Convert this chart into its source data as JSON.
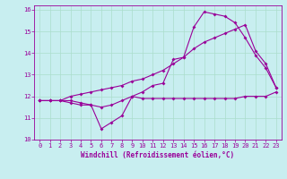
{
  "title": "",
  "xlabel": "Windchill (Refroidissement éolien,°C)",
  "bg_color": "#c8eef0",
  "line_color": "#990099",
  "grid_color": "#aaddcc",
  "xlim": [
    -0.5,
    23.5
  ],
  "ylim": [
    10,
    16.2
  ],
  "xticks": [
    0,
    1,
    2,
    3,
    4,
    5,
    6,
    7,
    8,
    9,
    10,
    11,
    12,
    13,
    14,
    15,
    16,
    17,
    18,
    19,
    20,
    21,
    22,
    23
  ],
  "yticks": [
    10,
    11,
    12,
    13,
    14,
    15,
    16
  ],
  "series1_x": [
    0,
    1,
    2,
    3,
    4,
    5,
    6,
    7,
    8,
    9,
    10,
    11,
    12,
    13,
    14,
    15,
    16,
    17,
    18,
    19,
    20,
    21,
    22,
    23
  ],
  "series1_y": [
    11.8,
    11.8,
    11.8,
    11.7,
    11.6,
    11.6,
    10.5,
    10.8,
    11.1,
    12.0,
    11.9,
    11.9,
    11.9,
    11.9,
    11.9,
    11.9,
    11.9,
    11.9,
    11.9,
    11.9,
    12.0,
    12.0,
    12.0,
    12.2
  ],
  "series2_x": [
    0,
    1,
    2,
    3,
    4,
    5,
    6,
    7,
    8,
    9,
    10,
    11,
    12,
    13,
    14,
    15,
    16,
    17,
    18,
    19,
    20,
    21,
    22,
    23
  ],
  "series2_y": [
    11.8,
    11.8,
    11.8,
    11.8,
    11.7,
    11.6,
    11.5,
    11.6,
    11.8,
    12.0,
    12.2,
    12.5,
    12.6,
    13.7,
    13.8,
    15.2,
    15.9,
    15.8,
    15.7,
    15.4,
    14.7,
    13.9,
    13.3,
    12.4
  ],
  "series3_x": [
    0,
    1,
    2,
    3,
    4,
    5,
    6,
    7,
    8,
    9,
    10,
    11,
    12,
    13,
    14,
    15,
    16,
    17,
    18,
    19,
    20,
    21,
    22,
    23
  ],
  "series3_y": [
    11.8,
    11.8,
    11.8,
    12.0,
    12.1,
    12.2,
    12.3,
    12.4,
    12.5,
    12.7,
    12.8,
    13.0,
    13.2,
    13.5,
    13.8,
    14.2,
    14.5,
    14.7,
    14.9,
    15.1,
    15.3,
    14.1,
    13.5,
    12.4
  ],
  "label_fontsize": 5,
  "xlabel_fontsize": 5.5
}
